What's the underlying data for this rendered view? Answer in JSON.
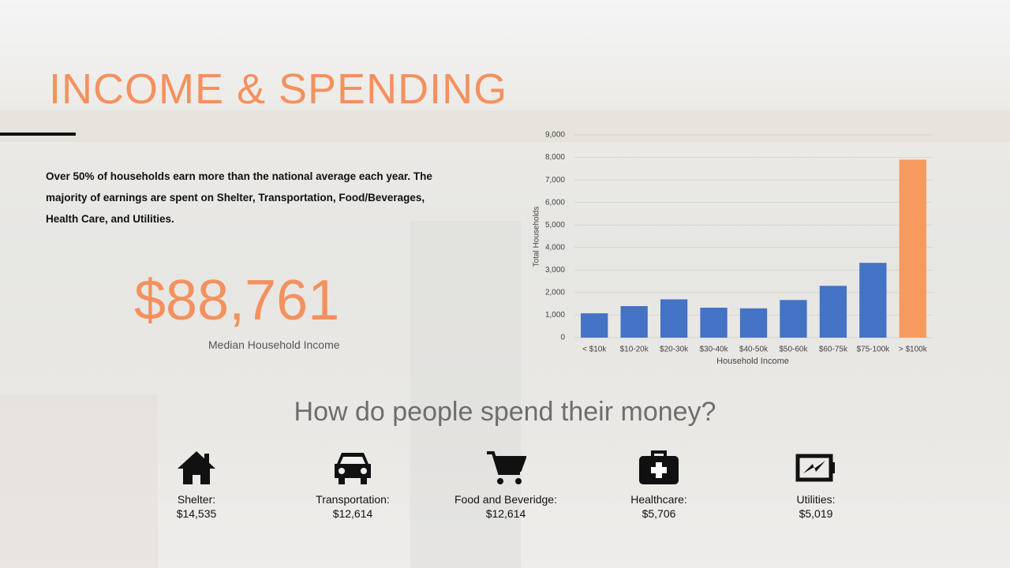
{
  "title": "INCOME & SPENDING",
  "description": "Over 50% of households earn more than the national average each year. The majority of earnings are spent on Shelter, Transportation, Food/Beverages, Health Care, and Utilities.",
  "median": {
    "value": "$88,761",
    "label": "Median Household Income"
  },
  "chart_data": {
    "type": "bar",
    "categories": [
      "< $10k",
      "$10-20k",
      "$20-30k",
      "$30-40k",
      "$40-50k",
      "$50-60k",
      "$60-75k",
      "$75-100k",
      "> $100k"
    ],
    "values": [
      1080,
      1400,
      1700,
      1330,
      1300,
      1670,
      2300,
      3320,
      7900
    ],
    "colors": [
      "#4472c4",
      "#4472c4",
      "#4472c4",
      "#4472c4",
      "#4472c4",
      "#4472c4",
      "#4472c4",
      "#4472c4",
      "#f79a5f"
    ],
    "ylim": [
      0,
      9000
    ],
    "yticks": [
      0,
      {
        "value": 1000,
        "label": "1,000"
      },
      {
        "value": 2000,
        "label": "2,000"
      },
      {
        "value": 3000,
        "label": "3,000"
      },
      {
        "value": 4000,
        "label": "4,000"
      },
      {
        "value": 5000,
        "label": "5,000"
      },
      {
        "value": 6000,
        "label": "6,000"
      },
      {
        "value": 7000,
        "label": "7,000"
      },
      {
        "value": 8000,
        "label": "8,000"
      },
      {
        "value": 9000,
        "label": "9,000"
      }
    ],
    "ylabel": "Total Households",
    "xlabel": "Household Income",
    "grid": true
  },
  "spending": {
    "heading": "How do people spend their money?",
    "items": [
      {
        "name": "Shelter:",
        "amount": "$14,535"
      },
      {
        "name": "Transportation:",
        "amount": "$12,614"
      },
      {
        "name": "Food and Beveridge:",
        "amount": "$12,614"
      },
      {
        "name": "Healthcare:",
        "amount": "$5,706"
      },
      {
        "name": "Utilities:",
        "amount": "$5,019"
      }
    ]
  }
}
